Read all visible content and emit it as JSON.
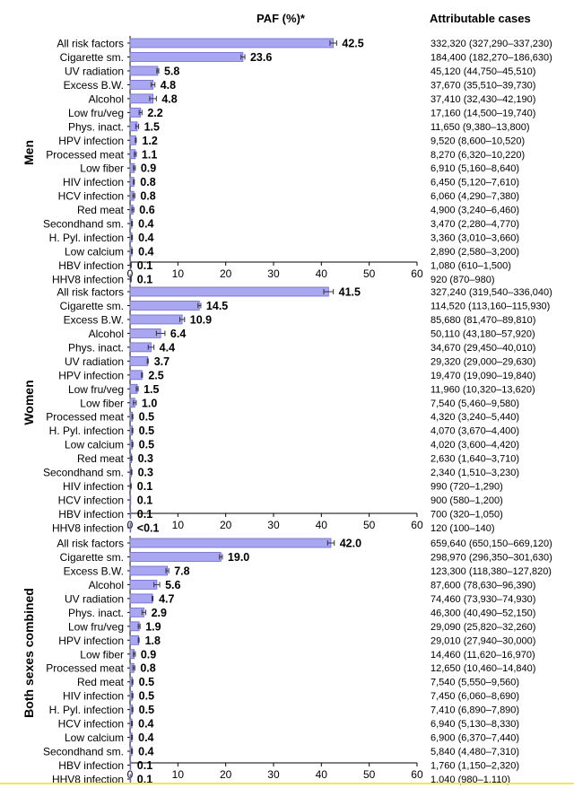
{
  "header": {
    "paf_title": "PAF (%)*",
    "cases_title": "Attributable cases"
  },
  "colors": {
    "bar_fill": "#a9a6f2",
    "bar_stroke": "#6d69c9",
    "axis": "#000000",
    "footer_line": "#f4e94a"
  },
  "chart_data": [
    {
      "type": "bar",
      "orientation": "horizontal",
      "group": "Men",
      "xlim": [
        0,
        60
      ],
      "xticks": [
        0,
        10,
        20,
        30,
        40,
        50,
        60
      ],
      "xlabel": "PAF (%)*",
      "categories": [
        "All risk factors",
        "Cigarette sm.",
        "UV radiation",
        "Excess B.W.",
        "Alcohol",
        "Low fru/veg",
        "Phys. inact.",
        "HPV infection",
        "Processed meat",
        "Low fiber",
        "HIV infection",
        "HCV infection",
        "Red meat",
        "Secondhand sm.",
        "H. Pyl. infection",
        "Low calcium",
        "HBV infection",
        "HHV8 infection"
      ],
      "values": [
        42.5,
        23.6,
        5.8,
        4.8,
        4.8,
        2.2,
        1.5,
        1.2,
        1.1,
        0.9,
        0.8,
        0.8,
        0.6,
        0.4,
        0.4,
        0.4,
        0.1,
        0.1
      ],
      "value_labels": [
        "42.5",
        "23.6",
        "5.8",
        "4.8",
        "4.8",
        "2.2",
        "1.5",
        "1.2",
        "1.1",
        "0.9",
        "0.8",
        "0.8",
        "0.6",
        "0.4",
        "0.4",
        "0.4",
        "0.1",
        "0.1"
      ],
      "ci_half": [
        0.7,
        0.4,
        0.2,
        0.4,
        0.7,
        0.3,
        0.3,
        0.1,
        0.2,
        0.2,
        0.1,
        0.2,
        0.2,
        0.1,
        0.1,
        0.1,
        0.1,
        0.1
      ],
      "cases": [
        "332,320 (327,290–337,230)",
        "184,400 (182,270–186,630)",
        "45,120 (44,750–45,510)",
        "37,670 (35,510–39,730)",
        "37,410 (32,430–42,190)",
        "17,160 (14,500–19,740)",
        "11,650 (9,380–13,800)",
        "9,520 (8,600–10,520)",
        "8,270 (6,320–10,220)",
        "6,910 (5,160–8,640)",
        "6,450 (5,120–7,610)",
        "6,060 (4,290–7,380)",
        "4,900 (3,240–6,460)",
        "3,470 (2,280–4,770)",
        "3,360 (3,010–3,660)",
        "2,890 (2,580–3,200)",
        "1,080 (610–1,500)",
        "920 (870–980)"
      ]
    },
    {
      "type": "bar",
      "orientation": "horizontal",
      "group": "Women",
      "xlim": [
        0,
        60
      ],
      "xticks": [
        0,
        10,
        20,
        30,
        40,
        50,
        60
      ],
      "xlabel": "PAF (%)*",
      "categories": [
        "All risk factors",
        "Cigarette sm.",
        "Excess B.W.",
        "Alcohol",
        "Phys. inact.",
        "UV radiation",
        "HPV infection",
        "Low fru/veg",
        "Low fiber",
        "Processed meat",
        "H. Pyl. infection",
        "Low calcium",
        "Red meat",
        "Secondhand sm.",
        "HIV infection",
        "HCV infection",
        "HBV infection",
        "HHV8 infection"
      ],
      "values": [
        41.5,
        14.5,
        10.9,
        6.4,
        4.4,
        3.7,
        2.5,
        1.5,
        1.0,
        0.5,
        0.5,
        0.5,
        0.3,
        0.3,
        0.1,
        0.1,
        0.1,
        0.05
      ],
      "value_labels": [
        "41.5",
        "14.5",
        "10.9",
        "6.4",
        "4.4",
        "3.7",
        "2.5",
        "1.5",
        "1.0",
        "0.5",
        "0.5",
        "0.5",
        "0.3",
        "0.3",
        "0.1",
        "0.1",
        "0.1",
        "<0.1"
      ],
      "ci_half": [
        1.0,
        0.3,
        0.5,
        0.9,
        0.6,
        0.1,
        0.1,
        0.2,
        0.3,
        0.1,
        0.1,
        0.1,
        0.1,
        0.1,
        0.1,
        0.05,
        0.05,
        0.02
      ],
      "cases": [
        "327,240 (319,540–336,040)",
        "114,520 (113,160–115,930)",
        "85,680 (81,470–89,810)",
        "50,110 (43,180–57,920)",
        "34,670 (29,450–40,010)",
        "29,320 (29,000–29,630)",
        "19,470 (19,090–19,840)",
        "11,960 (10,320–13,620)",
        "7,540 (5,460–9,580)",
        "4,320 (3,240–5,440)",
        "4,070 (3,670–4,400)",
        "4,020 (3,600–4,420)",
        "2,630 (1,640–3,710)",
        "2,340 (1,510–3,230)",
        "990 (720–1,290)",
        "900 (580–1,200)",
        "700 (320–1,050)",
        "120 (100–140)"
      ]
    },
    {
      "type": "bar",
      "orientation": "horizontal",
      "group": "Both sexes combined",
      "xlim": [
        0,
        60
      ],
      "xticks": [
        0,
        10,
        20,
        30,
        40,
        50,
        60
      ],
      "xlabel": "PAF (%)*",
      "categories": [
        "All risk factors",
        "Cigarette sm.",
        "Excess B.W.",
        "Alcohol",
        "UV radiation",
        "Phys. inact.",
        "Low fru/veg",
        "HPV infection",
        "Low fiber",
        "Processed meat",
        "Red meat",
        "HIV infection",
        "H. Pyl. infection",
        "HCV infection",
        "Low calcium",
        "Secondhand sm.",
        "HBV infection",
        "HHV8 infection"
      ],
      "values": [
        42.0,
        19.0,
        7.8,
        5.6,
        4.7,
        2.9,
        1.9,
        1.8,
        0.9,
        0.8,
        0.5,
        0.5,
        0.5,
        0.4,
        0.4,
        0.4,
        0.1,
        0.1
      ],
      "value_labels": [
        "42.0",
        "19.0",
        "7.8",
        "5.6",
        "4.7",
        "2.9",
        "1.9",
        "1.8",
        "0.9",
        "0.8",
        "0.5",
        "0.5",
        "0.5",
        "0.4",
        "0.4",
        "0.4",
        "0.1",
        "0.1"
      ],
      "ci_half": [
        0.7,
        0.3,
        0.3,
        0.6,
        0.1,
        0.4,
        0.2,
        0.1,
        0.2,
        0.2,
        0.1,
        0.1,
        0.1,
        0.1,
        0.1,
        0.1,
        0.05,
        0.02
      ],
      "cases": [
        "659,640 (650,150–669,120)",
        "298,970 (296,350–301,630)",
        "123,300 (118,380–127,820)",
        "87,600 (78,630–96,390)",
        "74,460 (73,930–74,930)",
        "46,300 (40,490–52,150)",
        "29,090 (25,820–32,260)",
        "29,010 (27,940–30,000)",
        "14,460 (11,620–16,970)",
        "12,650 (10,460–14,840)",
        "7,540 (5,550–9,560)",
        "7,450 (6,060–8,690)",
        "7,410 (6,890–7,890)",
        "6,940 (5,130–8,330)",
        "6,900 (6,370–7,440)",
        "5,840 (4,480–7,310)",
        "1,760 (1,150–2,320)",
        "1,040 (980–1,110)"
      ]
    }
  ]
}
